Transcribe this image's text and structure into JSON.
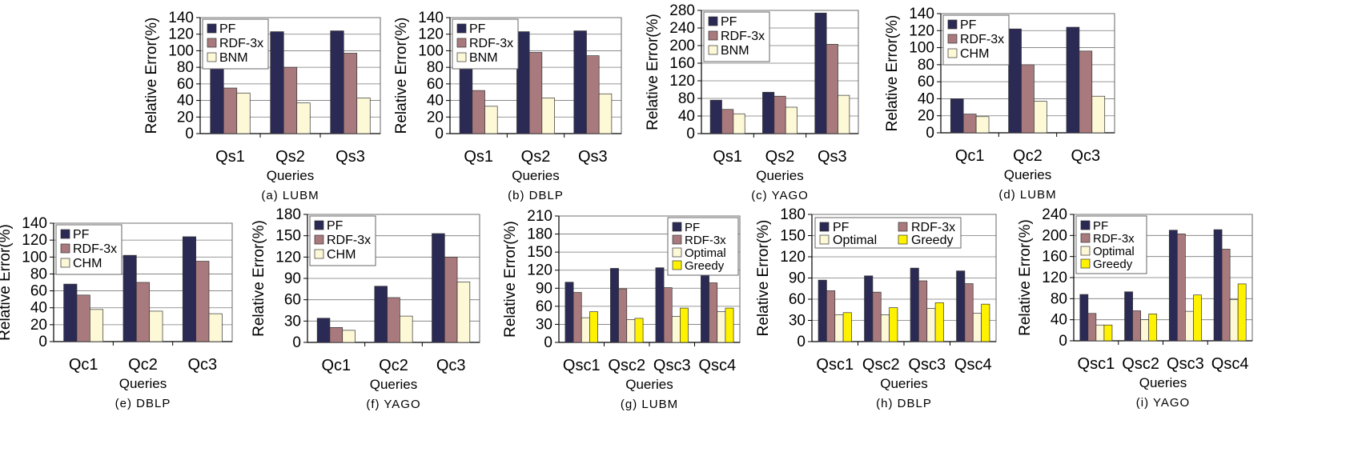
{
  "colors": {
    "PF": "#2b2a55",
    "RDF-3x": "#a97a7d",
    "BNM": "#fdf8d5",
    "CHM": "#fdf8d5",
    "Optimal": "#fdf8d5",
    "Greedy": "#fff200"
  },
  "chart_data": [
    {
      "type": "bar",
      "caption": "(a) LUBM",
      "xlabel": "Queries",
      "ylabel": "Relative Error(%)",
      "categories": [
        "Qs1",
        "Qs2",
        "Qs3"
      ],
      "ylim": [
        0,
        140
      ],
      "yticks": [
        0,
        20,
        40,
        60,
        80,
        100,
        120,
        140
      ],
      "legend": "top-left",
      "series": [
        {
          "name": "PF",
          "values": [
            80,
            123,
            124
          ]
        },
        {
          "name": "RDF-3x",
          "values": [
            55,
            80,
            97
          ]
        },
        {
          "name": "BNM",
          "values": [
            49,
            37,
            43
          ]
        }
      ]
    },
    {
      "type": "bar",
      "caption": "(b) DBLP",
      "xlabel": "Queries",
      "ylabel": "Relative Error(%)",
      "categories": [
        "Qs1",
        "Qs2",
        "Qs3"
      ],
      "ylim": [
        0,
        140
      ],
      "yticks": [
        0,
        20,
        40,
        60,
        80,
        100,
        120,
        140
      ],
      "legend": "top-left",
      "series": [
        {
          "name": "PF",
          "values": [
            80,
            123,
            124
          ]
        },
        {
          "name": "RDF-3x",
          "values": [
            52,
            98,
            94
          ]
        },
        {
          "name": "BNM",
          "values": [
            33,
            43,
            48
          ]
        }
      ]
    },
    {
      "type": "bar",
      "caption": "(c) YAGO",
      "xlabel": "Queries",
      "ylabel": "Relative Error(%)",
      "categories": [
        "Qs1",
        "Qs2",
        "Qs3"
      ],
      "ylim": [
        0,
        280
      ],
      "yticks": [
        0,
        40,
        80,
        120,
        160,
        200,
        240,
        280
      ],
      "legend": "top-left",
      "series": [
        {
          "name": "PF",
          "values": [
            76,
            94,
            274
          ]
        },
        {
          "name": "RDF-3x",
          "values": [
            55,
            85,
            203
          ]
        },
        {
          "name": "BNM",
          "values": [
            45,
            60,
            87
          ]
        }
      ]
    },
    {
      "type": "bar",
      "caption": "(d) LUBM",
      "xlabel": "Queries",
      "ylabel": "Relative Error(%)",
      "categories": [
        "Qc1",
        "Qc2",
        "Qc3"
      ],
      "ylim": [
        0,
        140
      ],
      "yticks": [
        0,
        20,
        40,
        60,
        80,
        100,
        120,
        140
      ],
      "legend": "top-left",
      "series": [
        {
          "name": "PF",
          "values": [
            40,
            122,
            124
          ]
        },
        {
          "name": "RDF-3x",
          "values": [
            22,
            80,
            96
          ]
        },
        {
          "name": "CHM",
          "values": [
            19,
            37,
            43
          ]
        }
      ]
    },
    {
      "type": "bar",
      "caption": "(e) DBLP",
      "xlabel": "Queries",
      "ylabel": "Relative Error(%)",
      "categories": [
        "Qc1",
        "Qc2",
        "Qc3"
      ],
      "ylim": [
        0,
        140
      ],
      "yticks": [
        0,
        20,
        40,
        60,
        80,
        100,
        120,
        140
      ],
      "legend": "top-left",
      "series": [
        {
          "name": "PF",
          "values": [
            68,
            102,
            124
          ]
        },
        {
          "name": "RDF-3x",
          "values": [
            55,
            70,
            95
          ]
        },
        {
          "name": "CHM",
          "values": [
            38,
            36,
            33
          ]
        }
      ]
    },
    {
      "type": "bar",
      "caption": "(f) YAGO",
      "xlabel": "Queries",
      "ylabel": "Relative Error(%)",
      "categories": [
        "Qc1",
        "Qc2",
        "Qc3"
      ],
      "ylim": [
        0,
        180
      ],
      "yticks": [
        0,
        30,
        60,
        90,
        120,
        150,
        180
      ],
      "legend": "top-left",
      "series": [
        {
          "name": "PF",
          "values": [
            34,
            79,
            153
          ]
        },
        {
          "name": "RDF-3x",
          "values": [
            21,
            63,
            120
          ]
        },
        {
          "name": "CHM",
          "values": [
            17,
            37,
            85
          ]
        }
      ]
    },
    {
      "type": "bar",
      "caption": "(g) LUBM",
      "xlabel": "Queries",
      "ylabel": "Relative Error(%)",
      "categories": [
        "Qsc1",
        "Qsc2",
        "Qsc3",
        "Qsc4"
      ],
      "ylim": [
        0,
        210
      ],
      "yticks": [
        0,
        30,
        60,
        90,
        120,
        150,
        180,
        210
      ],
      "legend": "top-right",
      "series": [
        {
          "name": "PF",
          "values": [
            100,
            123,
            124,
            115
          ]
        },
        {
          "name": "RDF-3x",
          "values": [
            83,
            89,
            91,
            99
          ]
        },
        {
          "name": "Optimal",
          "values": [
            41,
            38,
            43,
            51
          ]
        },
        {
          "name": "Greedy",
          "values": [
            51,
            40,
            57,
            57
          ]
        }
      ]
    },
    {
      "type": "bar",
      "caption": "(h) DBLP",
      "xlabel": "Queries",
      "ylabel": "Relative Error(%)",
      "categories": [
        "Qsc1",
        "Qsc2",
        "Qsc3",
        "Qsc4"
      ],
      "ylim": [
        0,
        180
      ],
      "yticks": [
        0,
        30,
        60,
        90,
        120,
        150,
        180
      ],
      "legend": "top-left",
      "series": [
        {
          "name": "PF",
          "values": [
            87,
            93,
            104,
            100
          ]
        },
        {
          "name": "RDF-3x",
          "values": [
            72,
            70,
            86,
            82
          ]
        },
        {
          "name": "Optimal",
          "values": [
            38,
            38,
            47,
            40
          ]
        },
        {
          "name": "Greedy",
          "values": [
            41,
            48,
            55,
            53
          ]
        }
      ]
    },
    {
      "type": "bar",
      "caption": "(i) YAGO",
      "xlabel": "Queries",
      "ylabel": "Relative Error(%)",
      "categories": [
        "Qsc1",
        "Qsc2",
        "Qsc3",
        "Qsc4"
      ],
      "ylim": [
        0,
        240
      ],
      "yticks": [
        0,
        40,
        80,
        120,
        160,
        200,
        240
      ],
      "legend": "top-left",
      "series": [
        {
          "name": "PF",
          "values": [
            88,
            93,
            210,
            211
          ]
        },
        {
          "name": "RDF-3x",
          "values": [
            52,
            57,
            203,
            174
          ]
        },
        {
          "name": "Optimal",
          "values": [
            30,
            40,
            56,
            78
          ]
        },
        {
          "name": "Greedy",
          "values": [
            30,
            51,
            87,
            108
          ]
        }
      ]
    }
  ]
}
